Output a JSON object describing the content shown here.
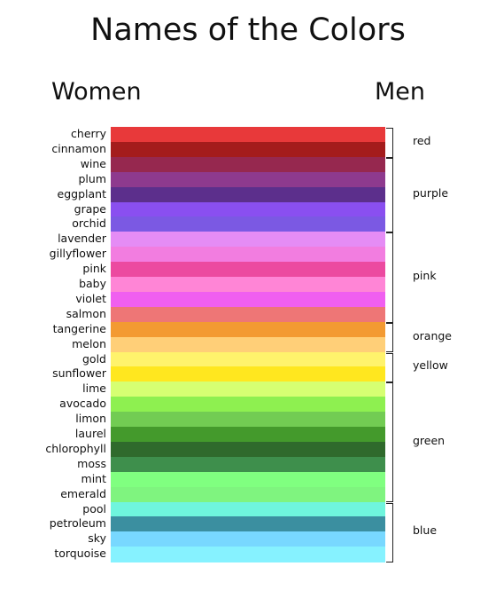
{
  "title": "Names of the Colors",
  "headings": {
    "women": "Women",
    "men": "Men"
  },
  "women_colors": [
    {
      "name": "cherry",
      "color": "#e8393a"
    },
    {
      "name": "cinnamon",
      "color": "#a41c1c"
    },
    {
      "name": "wine",
      "color": "#96284f"
    },
    {
      "name": "plum",
      "color": "#8e3a8e"
    },
    {
      "name": "eggplant",
      "color": "#5c2f8c"
    },
    {
      "name": "grape",
      "color": "#8a4ff0"
    },
    {
      "name": "orchid",
      "color": "#7b59e3"
    },
    {
      "name": "lavender",
      "color": "#e58cf5"
    },
    {
      "name": "gillyflower",
      "color": "#f27de0"
    },
    {
      "name": "pink",
      "color": "#ec4aa0"
    },
    {
      "name": "baby",
      "color": "#ff85d6"
    },
    {
      "name": "violet",
      "color": "#f05ff0"
    },
    {
      "name": "salmon",
      "color": "#ee7676"
    },
    {
      "name": "tangerine",
      "color": "#f39a32"
    },
    {
      "name": "melon",
      "color": "#ffcf78"
    },
    {
      "name": "gold",
      "color": "#fff36c"
    },
    {
      "name": "sunflower",
      "color": "#ffe71f"
    },
    {
      "name": "lime",
      "color": "#d6ff72"
    },
    {
      "name": "avocado",
      "color": "#8ef050"
    },
    {
      "name": "limon",
      "color": "#72cc53"
    },
    {
      "name": "laurel",
      "color": "#449a2c"
    },
    {
      "name": "chlorophyll",
      "color": "#2f6a2c"
    },
    {
      "name": "moss",
      "color": "#3e8f4c"
    },
    {
      "name": "mint",
      "color": "#80ff80"
    },
    {
      "name": "emerald",
      "color": "#7ff47f"
    },
    {
      "name": "pool",
      "color": "#6ff5dd"
    },
    {
      "name": "petroleum",
      "color": "#3b8fa0"
    },
    {
      "name": "sky",
      "color": "#78d8ff"
    },
    {
      "name": "torquoise",
      "color": "#86f2ff"
    }
  ],
  "men_colors": [
    {
      "name": "red",
      "first": 0,
      "last": 1
    },
    {
      "name": "purple",
      "first": 2,
      "last": 6
    },
    {
      "name": "pink",
      "first": 7,
      "last": 12
    },
    {
      "name": "orange",
      "first": 13,
      "last": 14
    },
    {
      "name": "yellow",
      "first": 15,
      "last": 16
    },
    {
      "name": "green",
      "first": 17,
      "last": 24
    },
    {
      "name": "blue",
      "first": 25,
      "last": 28
    }
  ]
}
